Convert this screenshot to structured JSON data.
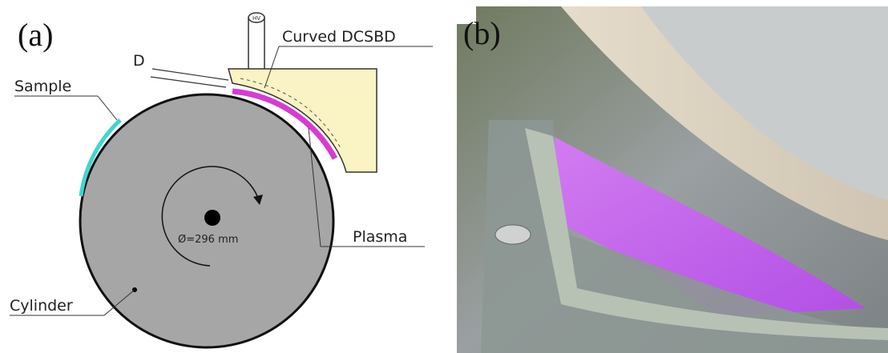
{
  "panel_a": {
    "label": "(a)",
    "electrode_label": "Curved DCSBD",
    "hv_label": "HV",
    "gap_label": "D",
    "sample_label": "Sample",
    "plasma_label": "Plasma",
    "cylinder_label": "Cylinder",
    "diameter_label": "Ø=296 mm"
  },
  "panel_b": {
    "label": "(b)"
  }
}
